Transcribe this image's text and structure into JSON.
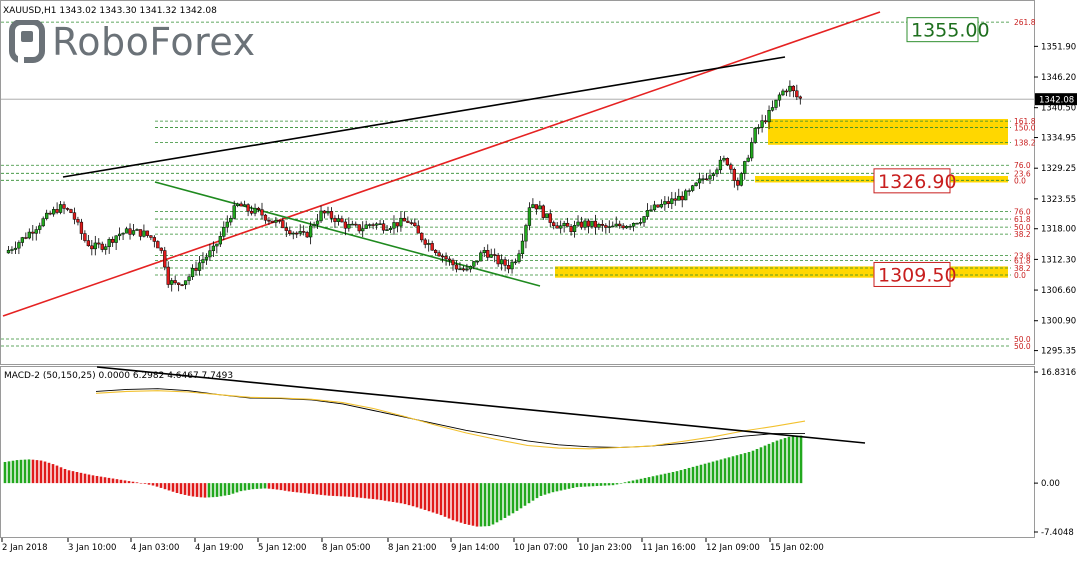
{
  "header": {
    "symbol_info": "XAUUSD,H1  1343.02 1343.30 1341.32 1342.08"
  },
  "logo": {
    "text": "RoboForex",
    "icon": "roboforex-r-icon",
    "color": "#6b7278"
  },
  "colors": {
    "bull": "#22a81e",
    "bear": "#e01b1b",
    "fib": "#2e8b2e",
    "fib_label": "#c81e1e",
    "zone": "#ffd700",
    "trend_up": "#e52222",
    "trend_black": "#000000",
    "trend_green": "#1f8a1f",
    "price_tag_bg": "#000000",
    "macd_signal": "#f2c12e",
    "macd_line": "#000000"
  },
  "chart_data": [
    {
      "type": "candlestick",
      "title": "XAUUSD,H1",
      "price_axis": {
        "ticks": [
          "1351.90",
          "1346.20",
          "1340.50",
          "1334.95",
          "1329.25",
          "1323.55",
          "1318.00",
          "1312.30",
          "1306.60",
          "1300.90",
          "1295.35"
        ],
        "ylim": [
          1293.6,
          1359.4
        ]
      },
      "time_axis": {
        "ticks": [
          "2 Jan 2018",
          "3 Jan 10:00",
          "4 Jan 03:00",
          "4 Jan 19:00",
          "5 Jan 12:00",
          "8 Jan 05:00",
          "8 Jan 21:00",
          "9 Jan 14:00",
          "10 Jan 07:00",
          "10 Jan 23:00",
          "11 Jan 16:00",
          "12 Jan 09:00",
          "15 Jan 02:00"
        ]
      },
      "current_price": "1342.08",
      "candles_close_path": [
        [
          0,
          1313.5
        ],
        [
          4,
          1316
        ],
        [
          9,
          1319.5
        ],
        [
          13,
          1322
        ],
        [
          16,
          1321
        ],
        [
          19,
          1316
        ],
        [
          21,
          1314.5
        ],
        [
          24,
          1315
        ],
        [
          27,
          1317
        ],
        [
          30,
          1317.5
        ],
        [
          33,
          1317.2
        ],
        [
          36,
          1316
        ],
        [
          38,
          1313
        ],
        [
          39,
          1308.5
        ],
        [
          41,
          1307.5
        ],
        [
          44,
          1309
        ],
        [
          47,
          1312
        ],
        [
          50,
          1314
        ],
        [
          52,
          1317
        ],
        [
          54,
          1320.5
        ],
        [
          56,
          1322.5
        ],
        [
          58,
          1321.5
        ],
        [
          61,
          1321
        ],
        [
          64,
          1319.5
        ],
        [
          67,
          1318.5
        ],
        [
          69,
          1317.5
        ],
        [
          72,
          1316.5
        ],
        [
          74,
          1319
        ],
        [
          76,
          1321
        ],
        [
          79,
          1320
        ],
        [
          82,
          1318.5
        ],
        [
          85,
          1318
        ],
        [
          88,
          1319
        ],
        [
          91,
          1318.5
        ],
        [
          94,
          1319
        ],
        [
          97,
          1319.5
        ],
        [
          99,
          1317
        ],
        [
          102,
          1315
        ],
        [
          105,
          1313
        ],
        [
          108,
          1311
        ],
        [
          111,
          1310
        ],
        [
          113,
          1312
        ],
        [
          115,
          1314
        ],
        [
          118,
          1312
        ],
        [
          121,
          1311
        ],
        [
          123,
          1313
        ],
        [
          125,
          1319
        ],
        [
          126,
          1323
        ],
        [
          128,
          1322
        ],
        [
          130,
          1320
        ],
        [
          133,
          1318.5
        ],
        [
          136,
          1318
        ],
        [
          139,
          1319
        ],
        [
          142,
          1318.5
        ],
        [
          145,
          1318
        ],
        [
          147,
          1318.5
        ],
        [
          150,
          1319
        ],
        [
          153,
          1320
        ],
        [
          155,
          1321.5
        ],
        [
          158,
          1322.5
        ],
        [
          161,
          1323.5
        ],
        [
          164,
          1324.5
        ],
        [
          167,
          1327
        ],
        [
          170,
          1329
        ],
        [
          173,
          1331
        ],
        [
          174,
          1329.5
        ],
        [
          176,
          1326
        ],
        [
          177,
          1328.5
        ],
        [
          178,
          1331
        ],
        [
          180,
          1336
        ],
        [
          182,
          1338
        ],
        [
          184,
          1340
        ],
        [
          186,
          1343
        ],
        [
          188,
          1344.5
        ],
        [
          190,
          1342.5
        ],
        [
          191,
          1342.08
        ]
      ],
      "series": [
        {
          "name": "Fibonacci upper",
          "levels": [
            {
              "label": "261.8",
              "value": 1356.4
            },
            {
              "label": "161.8",
              "value": 1338.0
            },
            {
              "label": "150.0",
              "value": 1336.8
            },
            {
              "label": "138.2",
              "value": 1334.0
            },
            {
              "label": "76.0",
              "value": 1329.8
            },
            {
              "label": "23.6",
              "value": 1328.3
            },
            {
              "label": "0.0",
              "value": 1327.0
            }
          ]
        },
        {
          "name": "Fibonacci lower",
          "levels": [
            {
              "label": "76.0",
              "value": 1321.2
            },
            {
              "label": "61.8",
              "value": 1319.8
            },
            {
              "label": "50.0",
              "value": 1318.3
            },
            {
              "label": "38.2",
              "value": 1317.0
            },
            {
              "label": "23.6",
              "value": 1313.0
            },
            {
              "label": "61.8",
              "value": 1312.1
            },
            {
              "label": "38.2",
              "value": 1310.7
            },
            {
              "label": "0.0",
              "value": 1309.4
            }
          ]
        },
        {
          "name": "Fibonacci bottom",
          "levels": [
            {
              "label": "50.0",
              "value": 1297.5
            },
            {
              "label": "50.0",
              "value": 1296.2
            }
          ]
        }
      ],
      "annotations": [
        {
          "text": "1355.00",
          "value": 1355.0,
          "style": "green-box"
        },
        {
          "text": "1326.90",
          "value": 1326.9,
          "style": "red-box"
        },
        {
          "text": "1309.50",
          "value": 1309.5,
          "style": "red-box"
        }
      ],
      "zones": [
        {
          "from": 1333.6,
          "to": 1338.4
        },
        {
          "from": 1326.6,
          "to": 1327.8
        },
        {
          "from": 1308.9,
          "to": 1311.0
        }
      ]
    },
    {
      "type": "line",
      "title": "MACD-2 (50,150,25) 0.0000 6.2982 4.6467 7.7493",
      "ylim": [
        -7.4048,
        16.8316
      ],
      "ticks": [
        "16.8316",
        "0.00",
        "-7.4048"
      ],
      "histogram": [
        3.2,
        3.5,
        3.6,
        3.4,
        2.8,
        2.0,
        1.6,
        1.2,
        0.9,
        0.6,
        0.3,
        0.0,
        -0.4,
        -1.0,
        -1.6,
        -2.0,
        -2.2,
        -2.1,
        -1.8,
        -1.2,
        -0.9,
        -0.8,
        -1.0,
        -1.3,
        -1.5,
        -1.7,
        -1.9,
        -2.0,
        -2.1,
        -2.3,
        -2.5,
        -2.8,
        -3.1,
        -3.6,
        -4.2,
        -4.8,
        -5.6,
        -6.2,
        -6.6,
        -6.5,
        -5.5,
        -4.4,
        -3.2,
        -2.0,
        -1.4,
        -1.0,
        -0.6,
        -0.5,
        -0.4,
        -0.3,
        0.2,
        0.6,
        1.0,
        1.4,
        1.8,
        2.3,
        2.8,
        3.3,
        3.8,
        4.3,
        4.8,
        5.6,
        6.4,
        7.0,
        7.2
      ],
      "series": [
        {
          "name": "MACD",
          "values": [
            13.9,
            14.2,
            14.3,
            14.0,
            13.4,
            12.9,
            12.8,
            12.6,
            12.0,
            11.0,
            10.0,
            9.0,
            8.0,
            7.2,
            6.4,
            5.8,
            5.5,
            5.4,
            5.6,
            6.0,
            6.5,
            7.1,
            7.5,
            7.5
          ]
        },
        {
          "name": "Signal",
          "values": [
            13.6,
            13.9,
            14.0,
            13.8,
            13.4,
            13.0,
            12.9,
            12.7,
            12.2,
            11.3,
            10.1,
            8.8,
            7.6,
            6.6,
            5.7,
            5.3,
            5.2,
            5.4,
            5.6,
            6.3,
            7.0,
            7.9,
            8.6,
            9.4
          ]
        }
      ]
    }
  ]
}
